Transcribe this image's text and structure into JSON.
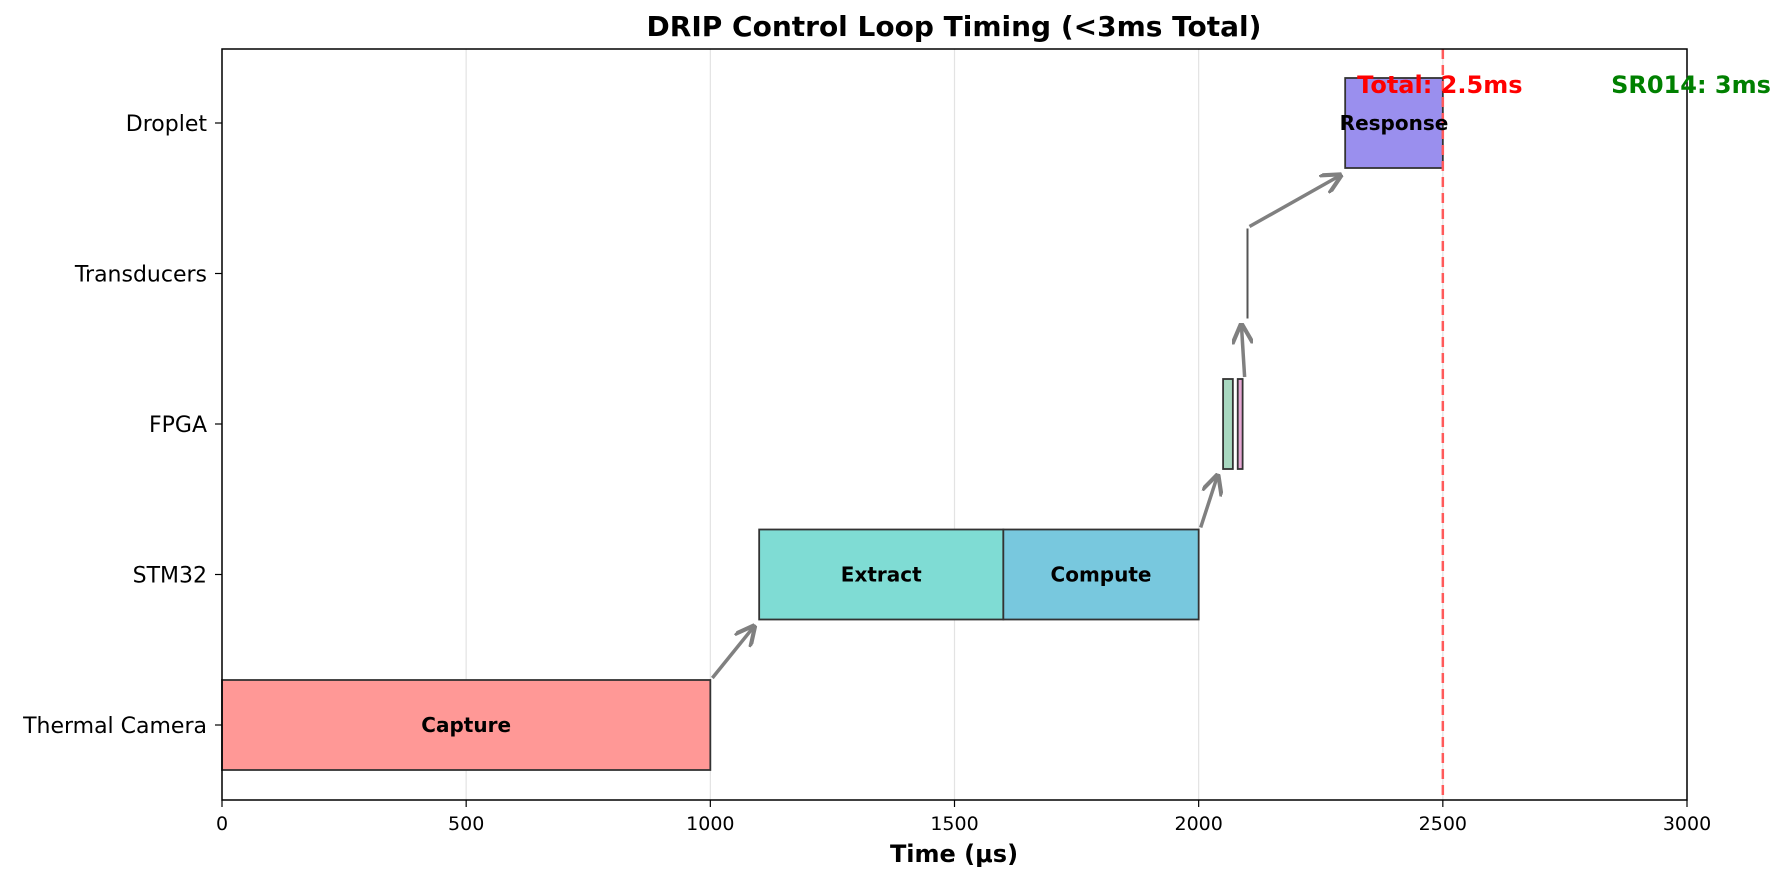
{
  "chart_data": {
    "type": "bar",
    "orientation": "horizontal-timeline",
    "title": "DRIP Control Loop Timing (<3ms Total)",
    "xlabel": "Time (μs)",
    "ylabel": "",
    "xlim": [
      0,
      3000
    ],
    "xticks": [
      0,
      500,
      1000,
      1500,
      2000,
      2500,
      3000
    ],
    "grid": "x",
    "categories": [
      "Thermal Camera",
      "STM32",
      "FPGA",
      "Transducers",
      "Droplet"
    ],
    "tasks": [
      {
        "row": "Thermal Camera",
        "label": "Capture",
        "start": 0,
        "end": 1000,
        "color": "#ff9896"
      },
      {
        "row": "STM32",
        "label": "Extract",
        "start": 1100,
        "end": 1600,
        "color": "#7fdcd4"
      },
      {
        "row": "STM32",
        "label": "Compute",
        "start": 1600,
        "end": 2000,
        "color": "#78c8de"
      },
      {
        "row": "FPGA",
        "label": "",
        "start": 2050,
        "end": 2070,
        "color": "#a8d8c0"
      },
      {
        "row": "FPGA",
        "label": "",
        "start": 2080,
        "end": 2090,
        "color": "#e6a8d4"
      },
      {
        "row": "Transducers",
        "label": "",
        "start": 2100,
        "end": 2101,
        "color": "#555555"
      },
      {
        "row": "Droplet",
        "label": "Response",
        "start": 2300,
        "end": 2500,
        "color": "#9a8fee"
      }
    ],
    "arrows": [
      {
        "from": [
          1000,
          "Thermal Camera"
        ],
        "to": [
          1100,
          "STM32"
        ]
      },
      {
        "from": [
          2000,
          "STM32"
        ],
        "to": [
          2050,
          "FPGA"
        ]
      },
      {
        "from": [
          2090,
          "FPGA"
        ],
        "to": [
          2100,
          "Transducers"
        ]
      },
      {
        "from": [
          2100,
          "Transducers"
        ],
        "to": [
          2300,
          "Droplet"
        ]
      }
    ],
    "reference_line": {
      "x": 2500,
      "color": "#ff5a5a"
    },
    "annotations": [
      {
        "text": "Total: 2.5ms",
        "x": 2300,
        "row": "Droplet",
        "color": "#ff0000"
      },
      {
        "text": "SR014: 3ms",
        "x": 2820,
        "row": "Droplet",
        "color": "#008000"
      }
    ]
  }
}
